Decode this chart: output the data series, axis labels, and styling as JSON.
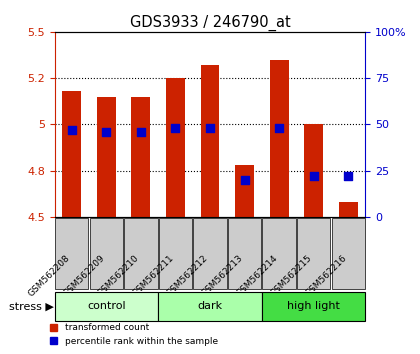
{
  "title": "GDS3933 / 246790_at",
  "samples": [
    "GSM562208",
    "GSM562209",
    "GSM562210",
    "GSM562211",
    "GSM562212",
    "GSM562213",
    "GSM562214",
    "GSM562215",
    "GSM562216"
  ],
  "red_values": [
    5.18,
    5.15,
    5.15,
    5.25,
    5.32,
    4.78,
    5.35,
    5.0,
    4.58
  ],
  "blue_values": [
    47,
    46,
    46,
    48,
    48,
    20,
    48,
    22,
    22
  ],
  "ylim_left": [
    4.5,
    5.5
  ],
  "ylim_right": [
    0,
    100
  ],
  "yticks_left": [
    4.5,
    4.75,
    5.0,
    5.25,
    5.5
  ],
  "yticks_right": [
    0,
    25,
    50,
    75,
    100
  ],
  "bar_color": "#cc2200",
  "dot_color": "#0000cc",
  "bar_bottom": 4.5,
  "groups": [
    {
      "label": "control",
      "indices": [
        0,
        1,
        2
      ],
      "color": "#ccffcc"
    },
    {
      "label": "dark",
      "indices": [
        3,
        4,
        5
      ],
      "color": "#aaffaa"
    },
    {
      "label": "high light",
      "indices": [
        6,
        7,
        8
      ],
      "color": "#44dd44"
    }
  ],
  "stress_label": "stress",
  "legend_labels": [
    "transformed count",
    "percentile rank within the sample"
  ],
  "legend_colors": [
    "#cc2200",
    "#0000cc"
  ],
  "bar_width": 0.55,
  "dot_size": 38,
  "title_color": "#000000",
  "left_tick_color": "#cc2200",
  "right_tick_color": "#0000cc",
  "plot_bg_color": "#ffffff",
  "tick_label_bg": "#cccccc"
}
